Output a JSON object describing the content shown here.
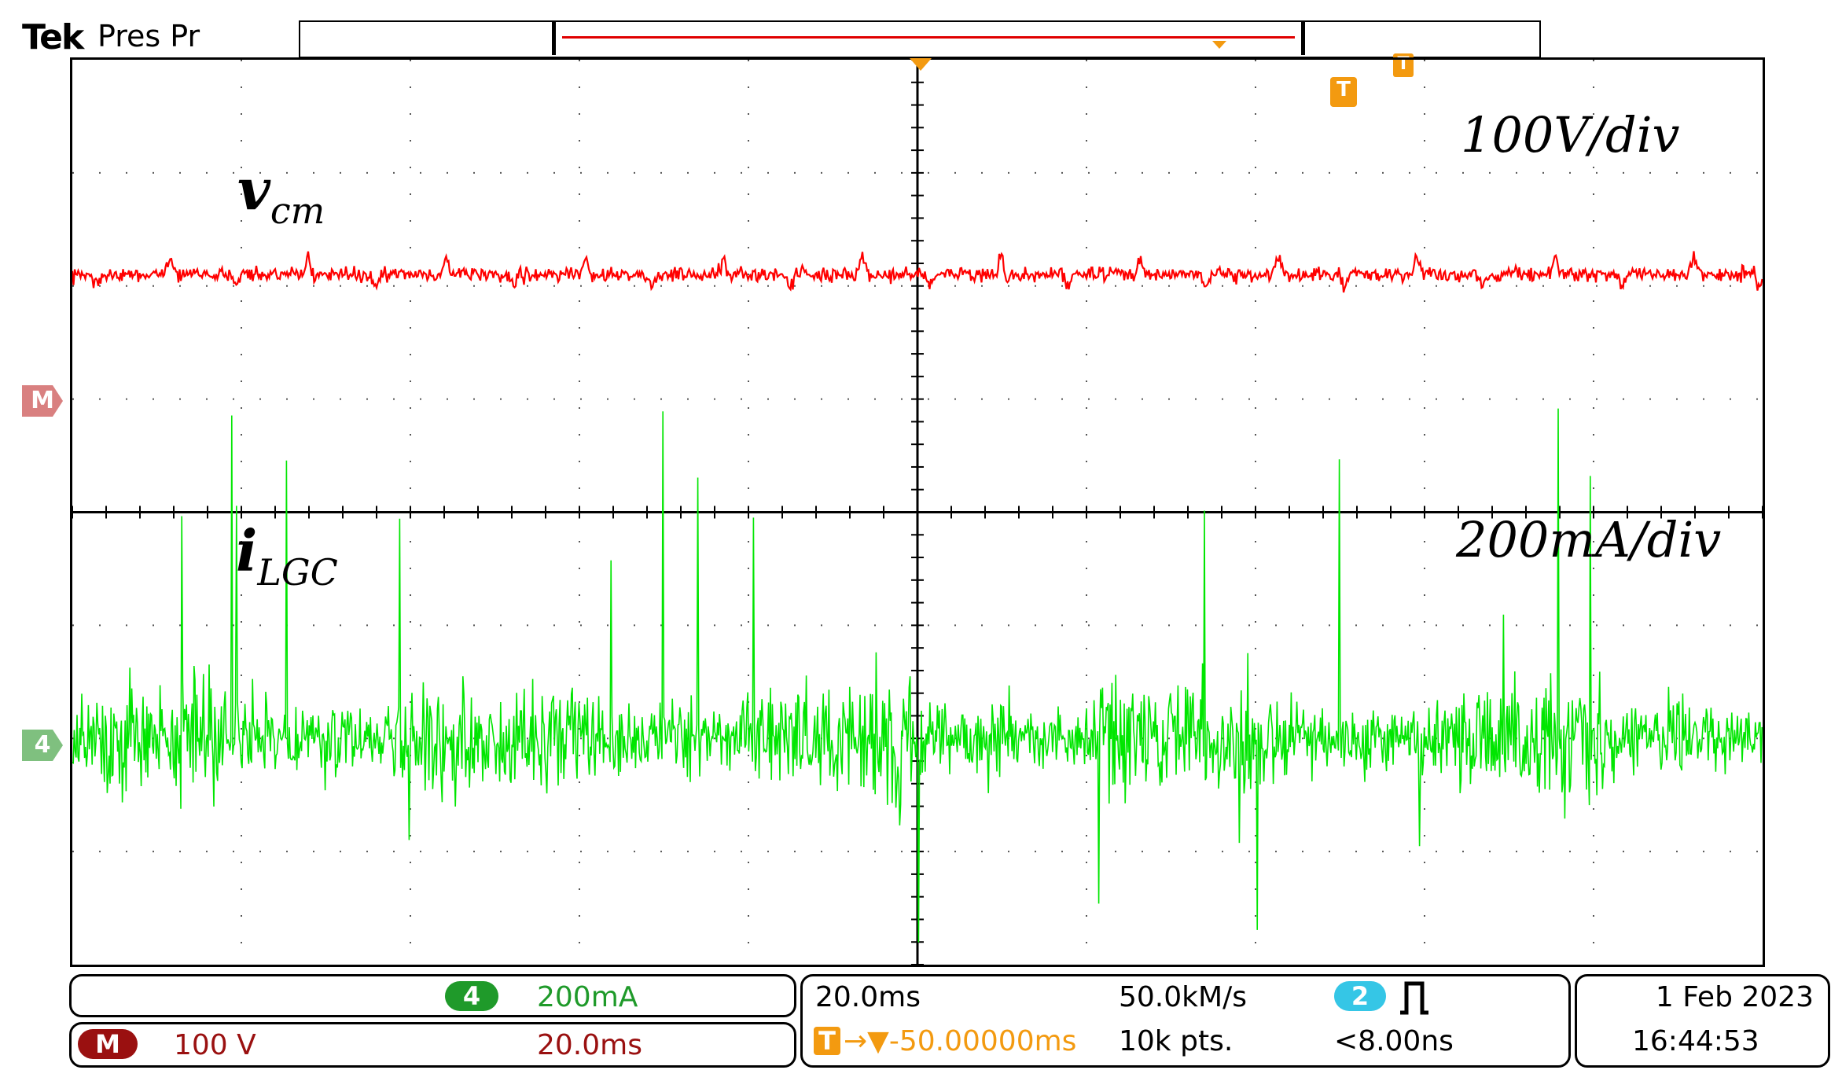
{
  "header": {
    "brand": "Tek",
    "status": "Pres Pr"
  },
  "markers": {
    "trigger_symbol": "T",
    "math_label": "M",
    "channel4_label": "4"
  },
  "annotations": {
    "vcm_symbol": "v",
    "vcm_subscript": "cm",
    "ilgc_symbol": "i",
    "ilgc_subscript": "LGC",
    "scale_top": "100V/div",
    "scale_bottom": "200mA/div"
  },
  "colors": {
    "math_trace": "#ff0000",
    "ch4_trace": "#00e600",
    "trigger": "#f39a10",
    "ch2_badge": "#35c6e6",
    "ch4_badge": "#1f9a2a",
    "math_badge": "#9a1010"
  },
  "readout": {
    "ch4": {
      "badge": "4",
      "scale": "200mA"
    },
    "math": {
      "badge": "M",
      "scale": "100 V",
      "time": "20.0ms"
    },
    "horizontal": {
      "scale": "20.0ms",
      "sample_rate": "50.0kM/s",
      "position": "→▼-50.00000ms",
      "record": "10k pts."
    },
    "trigger": {
      "source_badge": "2",
      "condition": "<8.00ns",
      "pulse_icon": "pulse-width-trigger-icon"
    },
    "datetime": {
      "date": "1 Feb  2023",
      "time": "16:44:53"
    }
  },
  "chart_data": {
    "type": "line",
    "grid": "10 horizontal x 8 vertical divisions",
    "series": [
      {
        "name": "vcm",
        "scale": "100V/div",
        "level_div": 2.1,
        "shape": "noisy, periodic bumps"
      },
      {
        "name": "iLGC",
        "scale": "200mA/div",
        "level_div": -2.0,
        "shape": "broadband noise with spikes"
      }
    ]
  }
}
